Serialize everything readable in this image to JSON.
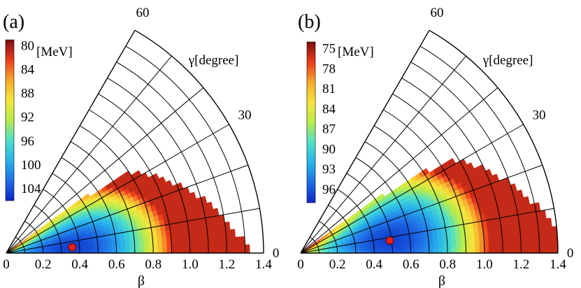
{
  "figure": {
    "description_free": true
  },
  "chart_data": [
    {
      "type": "heatmap",
      "panel_label": "(a)",
      "unit_label": "[MeV]",
      "colorbar_ticks": [
        "80",
        "84",
        "88",
        "92",
        "96",
        "100",
        "104"
      ],
      "colorbar_range": [
        79,
        106
      ],
      "gamma_label": "γ[degree]",
      "gamma_ticks": [
        "0",
        "30",
        "60"
      ],
      "beta_label": "β",
      "beta_ticks": [
        "0",
        "0.2",
        "0.4",
        "0.6",
        "0.8",
        "1.0",
        "1.2",
        "1.4"
      ],
      "beta_range": [
        0,
        1.4
      ],
      "gamma_range_deg": [
        0,
        60
      ],
      "minimum": {
        "beta": 0.36,
        "gamma_deg": 5,
        "marker_color": "#e8201a"
      },
      "colorscale": [
        "#0a28c8",
        "#1e6ee6",
        "#28b4ec",
        "#4ee0c8",
        "#b8ec4a",
        "#f6e63a",
        "#f8a82c",
        "#ee3a1c",
        "#7a0e0e"
      ]
    },
    {
      "type": "heatmap",
      "panel_label": "(b)",
      "unit_label": "[MeV]",
      "colorbar_ticks": [
        "75",
        "78",
        "81",
        "84",
        "87",
        "90",
        "93",
        "96"
      ],
      "colorbar_range": [
        74,
        98
      ],
      "gamma_label": "γ[degree]",
      "gamma_ticks": [
        "0",
        "30",
        "60"
      ],
      "beta_label": "β",
      "beta_ticks": [
        "0",
        "0.2",
        "0.4",
        "0.6",
        "0.8",
        "1.0",
        "1.2",
        "1.4"
      ],
      "beta_range": [
        0,
        1.4
      ],
      "gamma_range_deg": [
        0,
        60
      ],
      "minimum": {
        "beta": 0.49,
        "gamma_deg": 8,
        "marker_color": "#e8201a"
      },
      "colorscale": [
        "#0a28c8",
        "#1e6ee6",
        "#28b4ec",
        "#4ee0c8",
        "#b8ec4a",
        "#f6e63a",
        "#f8a82c",
        "#ee3a1c",
        "#7a0e0e"
      ]
    }
  ]
}
